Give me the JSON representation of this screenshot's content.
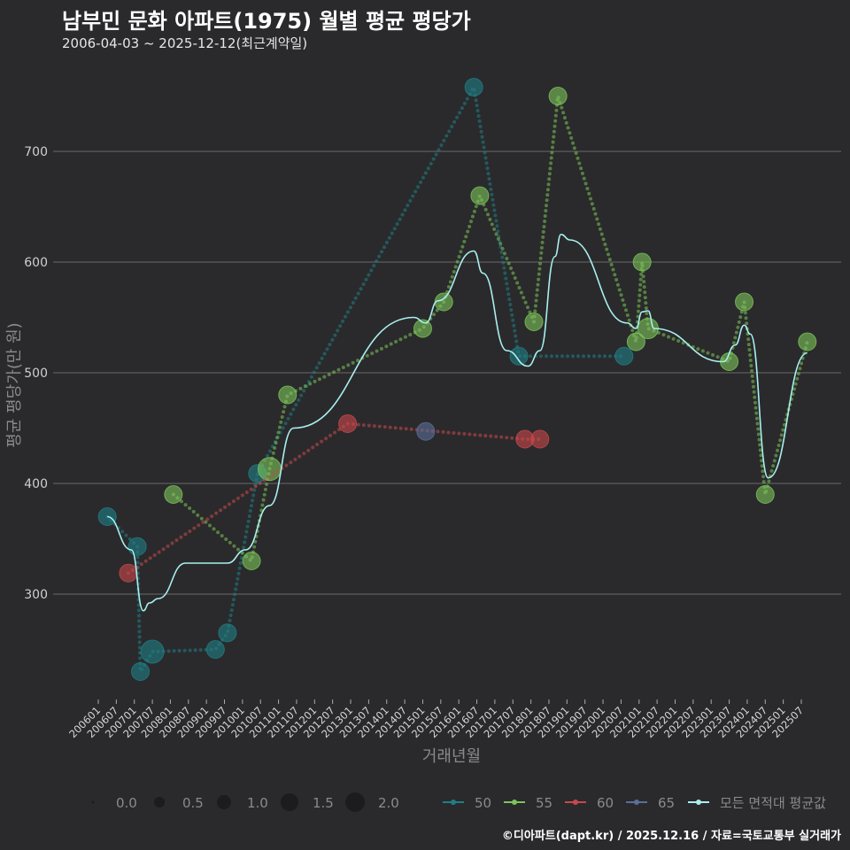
{
  "chart_data": {
    "type": "scatter",
    "title": "남부민 문화 아파트(1975) 월별 평균 평당가",
    "subtitle": "2006-04-03 ~ 2025-12-12(최근계약일)",
    "xlabel": "거래년월",
    "ylabel": "평균 평당가(만 원)",
    "ylim": [
      205,
      785
    ],
    "y_ticks": [
      300,
      400,
      500,
      600,
      700
    ],
    "x_ticks": [
      "200601",
      "200607",
      "200701",
      "200707",
      "200801",
      "200807",
      "200901",
      "200907",
      "201001",
      "201007",
      "201101",
      "201107",
      "201201",
      "201207",
      "201301",
      "201307",
      "201401",
      "201407",
      "201501",
      "201507",
      "201601",
      "201607",
      "201701",
      "201707",
      "201801",
      "201807",
      "201901",
      "201907",
      "202001",
      "202007",
      "202101",
      "202107",
      "202201",
      "202207",
      "202301",
      "202307",
      "202401",
      "202407",
      "202501",
      "202507"
    ],
    "size_legend": {
      "values": [
        "0.0",
        "0.5",
        "1.0",
        "1.5",
        "2.0"
      ]
    },
    "series": [
      {
        "name": "50",
        "color": "#1f7f86",
        "points": [
          [
            "2006-04",
            370,
            1
          ],
          [
            "2007-02",
            343,
            1
          ],
          [
            "2007-03",
            230,
            1
          ],
          [
            "2007-07",
            248,
            2
          ],
          [
            "2009-04",
            250,
            1
          ],
          [
            "2009-08",
            265,
            1
          ],
          [
            "2010-06",
            409,
            1
          ],
          [
            "2016-06",
            758,
            1
          ],
          [
            "2017-09",
            515,
            1
          ],
          [
            "2020-08",
            515,
            1
          ]
        ]
      },
      {
        "name": "55",
        "color": "#7dc45a",
        "points": [
          [
            "2008-02",
            390,
            1
          ],
          [
            "2010-04",
            330,
            1
          ],
          [
            "2010-10",
            413,
            2
          ],
          [
            "2011-04",
            480,
            1
          ],
          [
            "2015-01",
            540,
            1
          ],
          [
            "2015-08",
            564,
            1
          ],
          [
            "2016-08",
            660,
            1
          ],
          [
            "2018-02",
            546,
            1
          ],
          [
            "2018-10",
            750,
            1
          ],
          [
            "2020-12",
            528,
            1
          ],
          [
            "2021-02",
            600,
            1
          ],
          [
            "2021-04",
            540,
            1.5
          ],
          [
            "2023-07",
            510,
            1
          ],
          [
            "2023-12",
            564,
            1
          ],
          [
            "2024-07",
            390,
            1
          ],
          [
            "2025-09",
            528,
            1
          ]
        ]
      },
      {
        "name": "60",
        "color": "#c9484b",
        "points": [
          [
            "2006-11",
            319,
            1
          ],
          [
            "2012-12",
            454,
            1
          ],
          [
            "2017-11",
            440,
            1
          ],
          [
            "2018-04",
            440,
            1
          ]
        ]
      },
      {
        "name": "65",
        "color": "#5b6f9a",
        "points": [
          [
            "2015-02",
            447,
            1
          ]
        ]
      }
    ],
    "average": {
      "name": "모든 면적대 평균값",
      "color": "#a8f0f0",
      "points": [
        [
          "2006-04",
          370
        ],
        [
          "2006-12",
          340
        ],
        [
          "2007-04",
          285
        ],
        [
          "2007-06",
          292
        ],
        [
          "2007-09",
          296
        ],
        [
          "2008-06",
          328
        ],
        [
          "2009-08",
          328
        ],
        [
          "2010-02",
          340
        ],
        [
          "2010-10",
          380
        ],
        [
          "2011-06",
          450
        ],
        [
          "2014-10",
          550
        ],
        [
          "2015-02",
          545
        ],
        [
          "2015-06",
          565
        ],
        [
          "2016-06",
          610
        ],
        [
          "2016-09",
          590
        ],
        [
          "2017-05",
          520
        ],
        [
          "2017-12",
          506
        ],
        [
          "2018-04",
          520
        ],
        [
          "2018-09",
          605
        ],
        [
          "2018-11",
          625
        ],
        [
          "2019-02",
          620
        ],
        [
          "2020-09",
          545
        ],
        [
          "2020-12",
          540
        ],
        [
          "2021-02",
          555
        ],
        [
          "2021-04",
          556
        ],
        [
          "2021-06",
          540
        ],
        [
          "2023-05",
          510
        ],
        [
          "2023-09",
          525
        ],
        [
          "2023-12",
          543
        ],
        [
          "2024-02",
          535
        ],
        [
          "2024-08",
          405
        ],
        [
          "2025-09",
          518
        ]
      ]
    },
    "caption": "©디아파트(dapt.kr) / 2025.12.16 / 자료=국토교통부 실거래가"
  }
}
